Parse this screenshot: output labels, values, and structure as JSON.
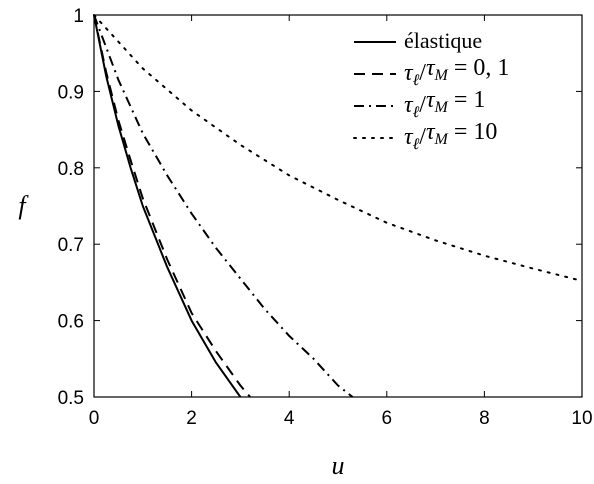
{
  "chart_data": {
    "type": "line",
    "xlabel": "u",
    "ylabel": "f",
    "xlim": [
      0,
      10
    ],
    "ylim": [
      0.5,
      1
    ],
    "x_ticks": [
      "0",
      "2",
      "4",
      "6",
      "8",
      "10"
    ],
    "y_ticks": [
      "0.5",
      "0.6",
      "0.7",
      "0.8",
      "0.9",
      "1"
    ],
    "grid": false,
    "legend_position": "top-right",
    "series": [
      {
        "name": "élastique",
        "style": "solid",
        "color": "#000000",
        "x": [
          0,
          0.25,
          0.5,
          0.75,
          1.0,
          1.5,
          2.0,
          2.5,
          3.0
        ],
        "y": [
          1.0,
          0.92,
          0.855,
          0.8,
          0.75,
          0.67,
          0.6,
          0.545,
          0.5
        ]
      },
      {
        "name": "τℓ/τM = 0, 1",
        "style": "dashed",
        "color": "#000000",
        "x": [
          0,
          0.25,
          0.5,
          0.75,
          1.0,
          1.5,
          2.0,
          2.5,
          3.0,
          3.2
        ],
        "y": [
          1.0,
          0.925,
          0.862,
          0.81,
          0.76,
          0.68,
          0.61,
          0.56,
          0.515,
          0.5
        ]
      },
      {
        "name": "τℓ/τM = 1",
        "style": "dashdot",
        "color": "#000000",
        "x": [
          0,
          0.5,
          1.0,
          1.5,
          2.0,
          2.5,
          3.0,
          3.5,
          4.0,
          4.5,
          5.0,
          5.3
        ],
        "y": [
          1.0,
          0.915,
          0.845,
          0.79,
          0.74,
          0.695,
          0.655,
          0.615,
          0.58,
          0.55,
          0.515,
          0.5
        ]
      },
      {
        "name": "τℓ/τM = 10",
        "style": "dotted",
        "color": "#000000",
        "x": [
          0,
          1,
          2,
          3,
          4,
          5,
          6,
          7,
          8,
          9,
          10
        ],
        "y": [
          1.0,
          0.93,
          0.875,
          0.83,
          0.79,
          0.758,
          0.728,
          0.705,
          0.685,
          0.668,
          0.652
        ]
      }
    ]
  },
  "legend": {
    "items": [
      {
        "label": "élastique",
        "style": "solid"
      },
      {
        "label_math": {
          "lhs1": "τ",
          "sub1": "ℓ",
          "sep": "/",
          "lhs2": "τ",
          "sub2": "M",
          "rhs": "= 0, 1"
        },
        "style": "dashed"
      },
      {
        "label_math": {
          "lhs1": "τ",
          "sub1": "ℓ",
          "sep": "/",
          "lhs2": "τ",
          "sub2": "M",
          "rhs": "= 1"
        },
        "style": "dashdot"
      },
      {
        "label_math": {
          "lhs1": "τ",
          "sub1": "ℓ",
          "sep": "/",
          "lhs2": "τ",
          "sub2": "M",
          "rhs": "= 10"
        },
        "style": "dotted"
      }
    ]
  }
}
